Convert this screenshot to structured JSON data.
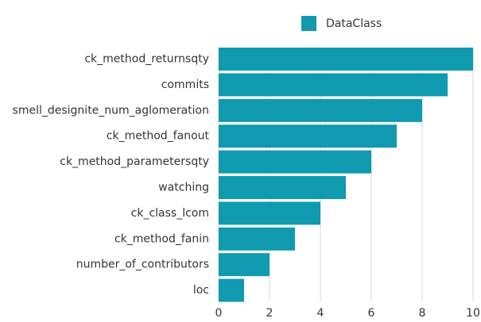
{
  "chart_data": {
    "type": "bar",
    "orientation": "horizontal",
    "categories": [
      "ck_method_returnsqty",
      "commits",
      "smell_designite_num_aglomeration",
      "ck_method_fanout",
      "ck_method_parametersqty",
      "watching",
      "ck_class_lcom",
      "ck_method_fanin",
      "number_of_contributors",
      "loc"
    ],
    "series": [
      {
        "name": "DataClass",
        "values": [
          10,
          9,
          8,
          7,
          6,
          5,
          4,
          3,
          2,
          1
        ],
        "color": "#0f9ab0"
      }
    ],
    "xlim": [
      0,
      10
    ],
    "xticks": [
      0,
      2,
      4,
      6,
      8,
      10
    ],
    "grid": true,
    "legend_position": "top-right"
  },
  "colors": {
    "bar": "#0f9ab0",
    "grid": "#d8d8d8",
    "text": "#333333"
  }
}
